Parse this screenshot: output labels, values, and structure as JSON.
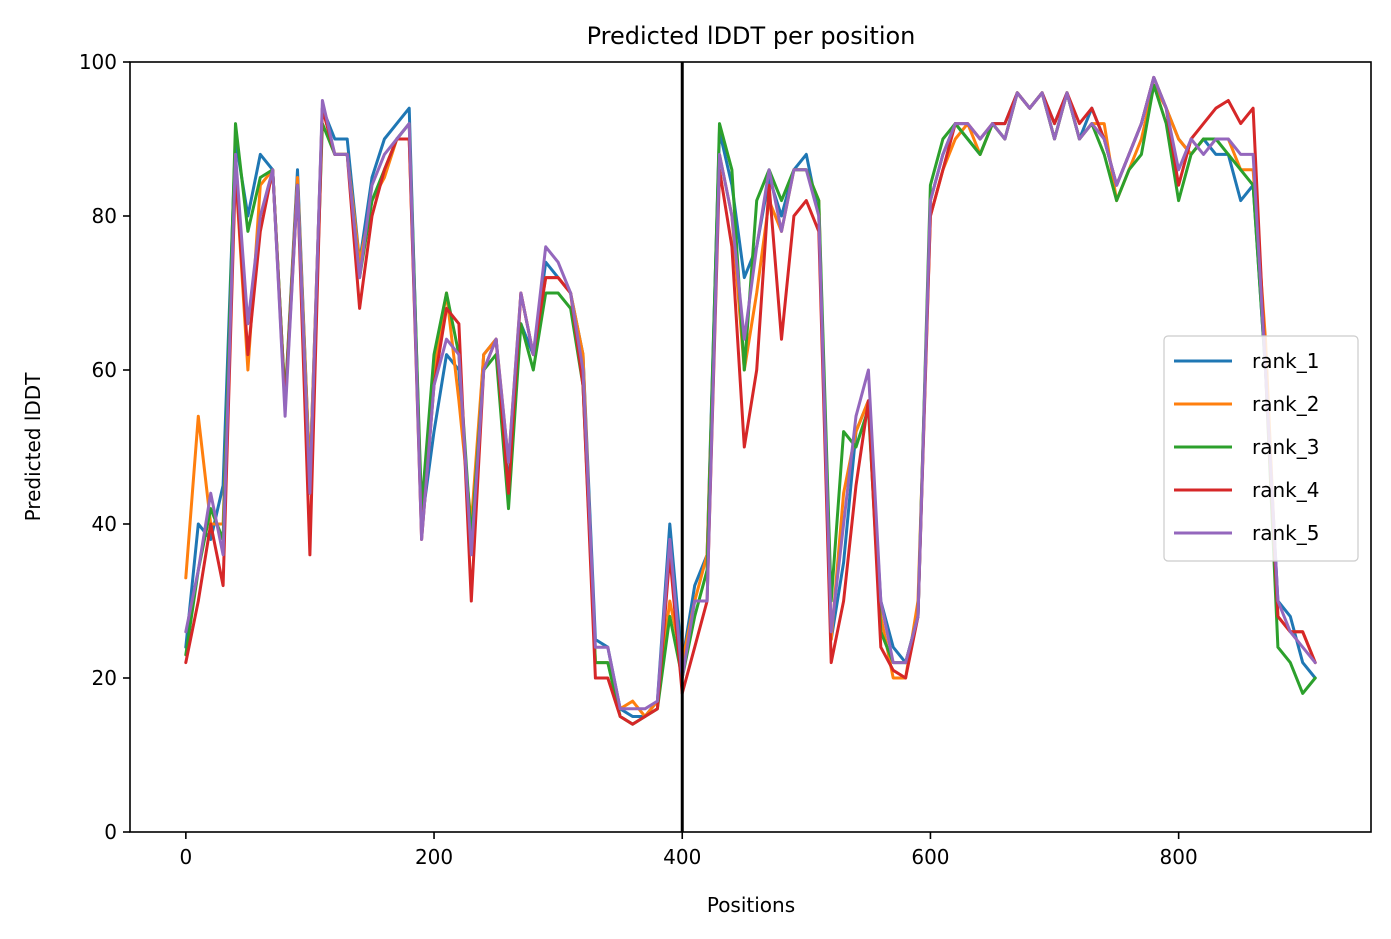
{
  "chart_data": {
    "type": "line",
    "title": "Predicted lDDT per position",
    "xlabel": "Positions",
    "ylabel": "Predicted lDDT",
    "xlim": [
      -45,
      955
    ],
    "ylim": [
      0,
      100
    ],
    "xticks": [
      0,
      200,
      400,
      600,
      800
    ],
    "yticks": [
      0,
      20,
      40,
      60,
      80,
      100
    ],
    "grid": false,
    "legend_position": "center-right",
    "vline_x": 400,
    "vline_color": "#000000",
    "x_start": 0,
    "x_step": 10,
    "series": [
      {
        "name": "rank_1",
        "color": "#1f77b4",
        "values": [
          24,
          40,
          38,
          45,
          90,
          80,
          88,
          86,
          56,
          86,
          46,
          94,
          90,
          90,
          74,
          85,
          90,
          92,
          94,
          40,
          52,
          62,
          60,
          37,
          62,
          64,
          45,
          66,
          62,
          74,
          72,
          70,
          62,
          25,
          24,
          16,
          15,
          15,
          17,
          40,
          22,
          32,
          36,
          91,
          84,
          72,
          76,
          85,
          80,
          86,
          88,
          80,
          25,
          35,
          52,
          56,
          30,
          24,
          22,
          28,
          82,
          88,
          92,
          90,
          88,
          92,
          92,
          96,
          94,
          96,
          92,
          96,
          90,
          94,
          90,
          84,
          88,
          92,
          98,
          94,
          90,
          88,
          90,
          88,
          88,
          82,
          84,
          60,
          30,
          28,
          22,
          20
        ]
      },
      {
        "name": "rank_2",
        "color": "#ff7f0e",
        "values": [
          33,
          54,
          40,
          40,
          86,
          60,
          84,
          86,
          56,
          85,
          46,
          94,
          88,
          88,
          74,
          82,
          85,
          90,
          90,
          40,
          60,
          70,
          56,
          40,
          62,
          64,
          48,
          70,
          62,
          72,
          72,
          70,
          62,
          22,
          22,
          16,
          17,
          15,
          17,
          30,
          22,
          30,
          36,
          88,
          80,
          60,
          70,
          82,
          78,
          86,
          86,
          82,
          25,
          44,
          52,
          56,
          28,
          20,
          20,
          30,
          80,
          86,
          90,
          92,
          88,
          92,
          90,
          96,
          94,
          96,
          90,
          96,
          90,
          92,
          92,
          82,
          86,
          90,
          97,
          94,
          90,
          88,
          90,
          90,
          90,
          86,
          86,
          64,
          28,
          26,
          26,
          22
        ]
      },
      {
        "name": "rank_3",
        "color": "#2ca02c",
        "values": [
          23,
          34,
          42,
          38,
          92,
          78,
          85,
          86,
          56,
          84,
          44,
          92,
          88,
          88,
          72,
          82,
          86,
          90,
          92,
          42,
          62,
          70,
          62,
          38,
          60,
          62,
          42,
          66,
          60,
          70,
          70,
          68,
          58,
          22,
          22,
          15,
          14,
          15,
          16,
          28,
          20,
          28,
          34,
          92,
          86,
          60,
          82,
          86,
          82,
          86,
          86,
          82,
          30,
          52,
          50,
          55,
          26,
          22,
          22,
          28,
          84,
          90,
          92,
          90,
          88,
          92,
          90,
          96,
          94,
          96,
          90,
          96,
          90,
          92,
          88,
          82,
          86,
          88,
          97,
          92,
          82,
          88,
          90,
          90,
          88,
          86,
          84,
          60,
          24,
          22,
          18,
          20
        ]
      },
      {
        "name": "rank_4",
        "color": "#d62728",
        "values": [
          22,
          30,
          40,
          32,
          86,
          62,
          78,
          86,
          55,
          84,
          36,
          94,
          88,
          88,
          68,
          80,
          86,
          90,
          90,
          38,
          58,
          68,
          66,
          30,
          60,
          64,
          44,
          70,
          62,
          72,
          72,
          70,
          58,
          20,
          20,
          15,
          14,
          15,
          16,
          36,
          18,
          24,
          30,
          86,
          76,
          50,
          60,
          84,
          64,
          80,
          82,
          78,
          22,
          30,
          45,
          56,
          24,
          21,
          20,
          28,
          80,
          86,
          92,
          92,
          90,
          92,
          92,
          96,
          94,
          96,
          92,
          96,
          92,
          94,
          90,
          84,
          88,
          92,
          98,
          94,
          84,
          90,
          92,
          94,
          95,
          92,
          94,
          60,
          28,
          26,
          26,
          22
        ]
      },
      {
        "name": "rank_5",
        "color": "#9467bd",
        "values": [
          26,
          34,
          44,
          36,
          88,
          66,
          80,
          86,
          54,
          84,
          44,
          95,
          88,
          88,
          72,
          84,
          88,
          90,
          92,
          38,
          58,
          64,
          62,
          36,
          60,
          64,
          48,
          70,
          62,
          76,
          74,
          70,
          60,
          24,
          24,
          16,
          16,
          16,
          17,
          38,
          20,
          30,
          30,
          88,
          80,
          64,
          76,
          86,
          78,
          86,
          86,
          80,
          26,
          40,
          54,
          60,
          30,
          22,
          22,
          28,
          82,
          88,
          92,
          92,
          90,
          92,
          90,
          96,
          94,
          96,
          90,
          96,
          90,
          92,
          90,
          84,
          88,
          92,
          98,
          94,
          86,
          90,
          88,
          90,
          90,
          88,
          88,
          60,
          30,
          26,
          24,
          22
        ]
      }
    ]
  }
}
